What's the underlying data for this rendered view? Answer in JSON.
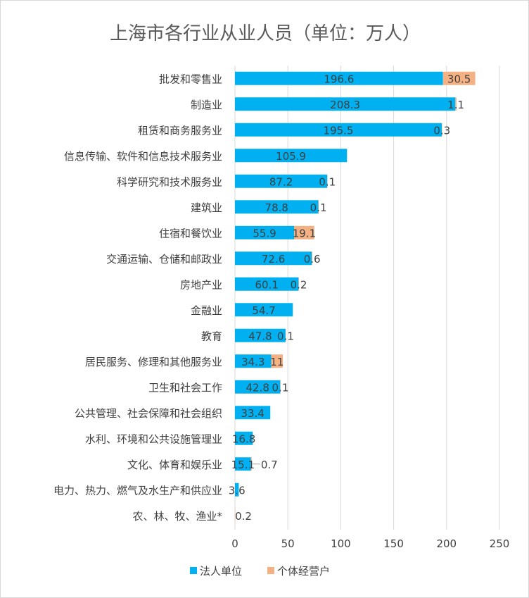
{
  "chart_data": {
    "type": "bar",
    "orientation": "horizontal",
    "stacked": true,
    "title": "上海市各行业从业人员（单位：万人）",
    "categories": [
      "批发和零售业",
      "制造业",
      "租赁和商务服务业",
      "信息传输、软件和信息技术服务业",
      "科学研究和技术服务业",
      "建筑业",
      "住宿和餐饮业",
      "交通运输、仓储和邮政业",
      "房地产业",
      "金融业",
      "教育",
      "居民服务、修理和其他服务业",
      "卫生和社会工作",
      "公共管理、社会保障和社会组织",
      "水利、环境和公共设施管理业",
      "文化、体育和娱乐业",
      "电力、热力、燃气及水生产和供应业",
      "农、林、牧、渔业*"
    ],
    "series": [
      {
        "name": "法人单位",
        "color": "#00b0f0",
        "values": [
          196.6,
          208.3,
          195.5,
          105.9,
          87.2,
          78.8,
          55.9,
          72.6,
          60.1,
          54.7,
          47.8,
          34.3,
          42.8,
          33.4,
          16.8,
          15.1,
          3.6,
          null
        ],
        "labels": [
          "196.6",
          "208.3",
          "195.5",
          "105.9",
          "87.2",
          "78.8",
          "55.9",
          "72.6",
          "60.1",
          "54.7",
          "47.8",
          "34.3",
          "42.8",
          "33.4",
          "16.8",
          "15.1",
          "3.6",
          ""
        ]
      },
      {
        "name": "个体经营户",
        "color": "#f4b183",
        "values": [
          30.5,
          1.1,
          0.3,
          null,
          0.1,
          0.1,
          19.1,
          0.6,
          0.2,
          null,
          0.1,
          11,
          0.1,
          null,
          null,
          0.7,
          null,
          0.2
        ],
        "labels": [
          "30.5",
          "1.1",
          "0.3",
          "",
          "0.1",
          "0.1",
          "19.1",
          "0.6",
          "0.2",
          "",
          "0.1",
          "11",
          "0.1",
          "",
          "",
          "0.7",
          "",
          "0.2"
        ]
      }
    ],
    "xlim": [
      0,
      250
    ],
    "x_ticks": [
      "0",
      "50",
      "100",
      "150",
      "200",
      "250"
    ],
    "grid": true,
    "legend_position": "bottom"
  }
}
